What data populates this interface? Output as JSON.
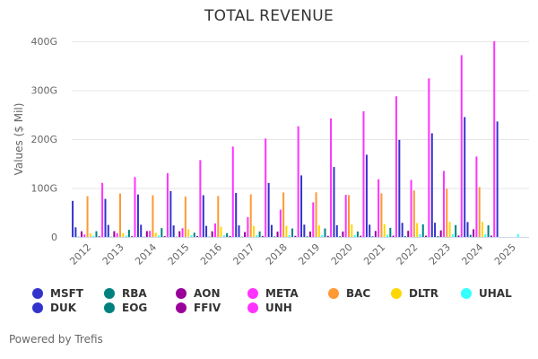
{
  "chart_data": {
    "type": "bar",
    "title": "TOTAL REVENUE",
    "xlabel": "",
    "ylabel": "Values ($ Mil)",
    "ylim": [
      0,
      400
    ],
    "yticks": [
      0,
      100,
      200,
      300,
      400
    ],
    "ytick_labels": [
      "0",
      "100G",
      "200G",
      "300G",
      "400G"
    ],
    "grid": true,
    "legend_position": "bottom",
    "categories": [
      "2012",
      "2013",
      "2014",
      "2015",
      "2016",
      "2017",
      "2018",
      "2019",
      "2020",
      "2021",
      "2022",
      "2023",
      "2024",
      "2025"
    ],
    "series": [
      {
        "name": "MSFT",
        "color": "#3333cc",
        "values": [
          73.7,
          77.8,
          86.8,
          93.6,
          85.3,
          90.0,
          110.4,
          125.8,
          143.0,
          168.1,
          198.3,
          211.9,
          245.1,
          236.0
        ]
      },
      {
        "name": "DUK",
        "color": "#3333cc",
        "values": [
          19.6,
          24.6,
          24.9,
          23.5,
          22.7,
          23.6,
          24.5,
          25.1,
          23.9,
          25.1,
          28.8,
          29.1,
          30.4,
          null
        ]
      },
      {
        "name": "RBA",
        "color": "#00807f",
        "values": [
          0.5,
          0.4,
          0.5,
          0.5,
          0.6,
          0.6,
          1.2,
          1.3,
          1.4,
          1.4,
          1.7,
          1.7,
          4.3,
          null
        ]
      },
      {
        "name": "AON",
        "color": "#990099",
        "values": [
          11.5,
          11.8,
          12.0,
          11.7,
          11.6,
          10.0,
          10.8,
          11.0,
          11.1,
          12.2,
          12.5,
          13.4,
          15.7,
          null
        ]
      },
      {
        "name": "META",
        "color": "#ff33ff",
        "values": [
          5.1,
          7.9,
          12.5,
          17.9,
          27.6,
          40.7,
          55.8,
          70.7,
          86.0,
          117.9,
          116.6,
          134.9,
          164.5,
          null
        ]
      },
      {
        "name": "BAC",
        "color": "#ff9933",
        "values": [
          83.3,
          88.9,
          85.1,
          82.5,
          83.7,
          87.1,
          91.0,
          91.2,
          85.5,
          89.1,
          95.0,
          98.6,
          101.9,
          null
        ]
      },
      {
        "name": "DLTR",
        "color": "#ffd700",
        "values": [
          7.4,
          7.8,
          8.6,
          15.5,
          20.7,
          22.2,
          22.8,
          23.6,
          25.5,
          26.3,
          28.3,
          30.6,
          30.8,
          null
        ]
      },
      {
        "name": "UHAL",
        "color": "#33ffff",
        "values": [
          2.6,
          2.8,
          3.0,
          3.3,
          3.4,
          3.6,
          3.8,
          4.0,
          4.0,
          4.5,
          5.7,
          5.9,
          5.6,
          5.8
        ]
      },
      {
        "name": "EOG",
        "color": "#00807f",
        "values": [
          11.7,
          14.5,
          18.0,
          8.7,
          7.7,
          11.2,
          17.3,
          17.4,
          11.0,
          18.6,
          25.7,
          24.2,
          23.7,
          null
        ]
      },
      {
        "name": "FFIV",
        "color": "#990099",
        "values": [
          1.4,
          1.5,
          1.7,
          1.9,
          2.0,
          2.1,
          2.2,
          2.2,
          2.4,
          2.6,
          2.7,
          2.8,
          2.8,
          null
        ]
      },
      {
        "name": "UNH",
        "color": "#ff33ff",
        "values": [
          110.6,
          122.5,
          130.5,
          157.1,
          184.8,
          201.2,
          226.2,
          242.2,
          257.1,
          287.6,
          324.2,
          371.6,
          400.3,
          null
        ]
      }
    ]
  },
  "legend": {
    "items": [
      {
        "name": "MSFT",
        "color": "#3333cc"
      },
      {
        "name": "RBA",
        "color": "#00807f"
      },
      {
        "name": "AON",
        "color": "#990099"
      },
      {
        "name": "META",
        "color": "#ff33ff"
      },
      {
        "name": "BAC",
        "color": "#ff9933"
      },
      {
        "name": "DLTR",
        "color": "#ffd700"
      },
      {
        "name": "UHAL",
        "color": "#33ffff"
      },
      {
        "name": "DUK",
        "color": "#3333cc"
      },
      {
        "name": "EOG",
        "color": "#00807f"
      },
      {
        "name": "FFIV",
        "color": "#990099"
      },
      {
        "name": "UNH",
        "color": "#ff33ff"
      }
    ]
  },
  "footer": {
    "text": "Powered by Trefis"
  }
}
